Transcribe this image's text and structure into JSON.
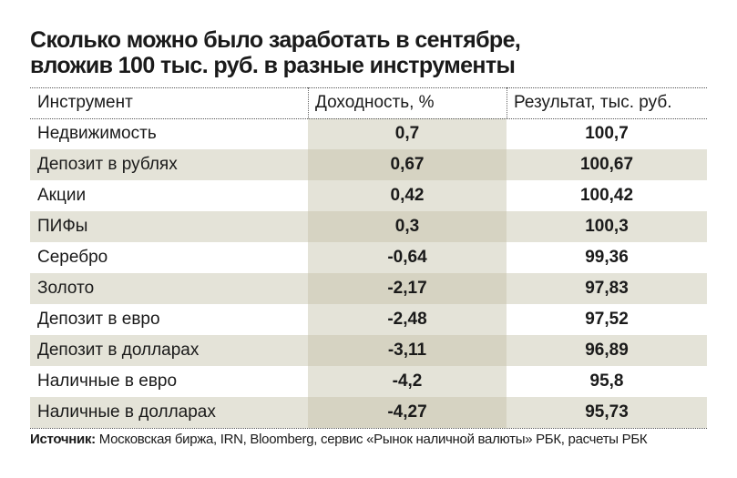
{
  "title": {
    "line1": "Сколько можно было заработать в сентябре,",
    "line2": "вложив 100 тыс. руб. в разные инструменты"
  },
  "table": {
    "headers": [
      "Инструмент",
      "Доходность, %",
      "Результат, тыс. руб."
    ],
    "rows": [
      {
        "instrument": "Недвижимость",
        "yield": "0,7",
        "result": "100,7"
      },
      {
        "instrument": "Депозит в рублях",
        "yield": "0,67",
        "result": "100,67"
      },
      {
        "instrument": "Акции",
        "yield": "0,42",
        "result": "100,42"
      },
      {
        "instrument": "ПИФы",
        "yield": "0,3",
        "result": "100,3"
      },
      {
        "instrument": "Серебро",
        "yield": "-0,64",
        "result": "99,36"
      },
      {
        "instrument": "Золото",
        "yield": "-2,17",
        "result": "97,83"
      },
      {
        "instrument": "Депозит в евро",
        "yield": "-2,48",
        "result": "97,52"
      },
      {
        "instrument": "Депозит в долларах",
        "yield": "-3,11",
        "result": "96,89"
      },
      {
        "instrument": "Наличные в евро",
        "yield": "-4,2",
        "result": "95,8"
      },
      {
        "instrument": "Наличные в долларах",
        "yield": "-4,27",
        "result": "95,73"
      }
    ]
  },
  "source": {
    "label": "Источник:",
    "text": " Московская биржа, IRN, Bloomberg, сервис «Рынок наличной валюты» РБК, расчеты РБК"
  },
  "colors": {
    "shade_light": "#e4e3d8",
    "shade_dark": "#d6d3c2",
    "text": "#1a1a1a"
  }
}
